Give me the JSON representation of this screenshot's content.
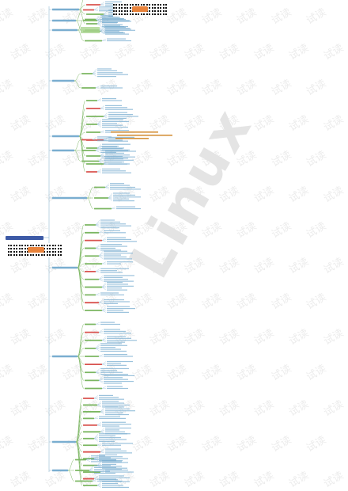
{
  "watermark_char": "试读",
  "big_watermark": "Linux",
  "colors": {
    "spine": "#8fb7d0",
    "branch": "#7bb661",
    "leaf_text": "#7aaed0",
    "red": "#d9534f",
    "orange": "#d4913a",
    "root": "#3d5aa6"
  },
  "leaves_per_branch": [
    4,
    3,
    3,
    2,
    10,
    3,
    3,
    12,
    9,
    14,
    3
  ]
}
